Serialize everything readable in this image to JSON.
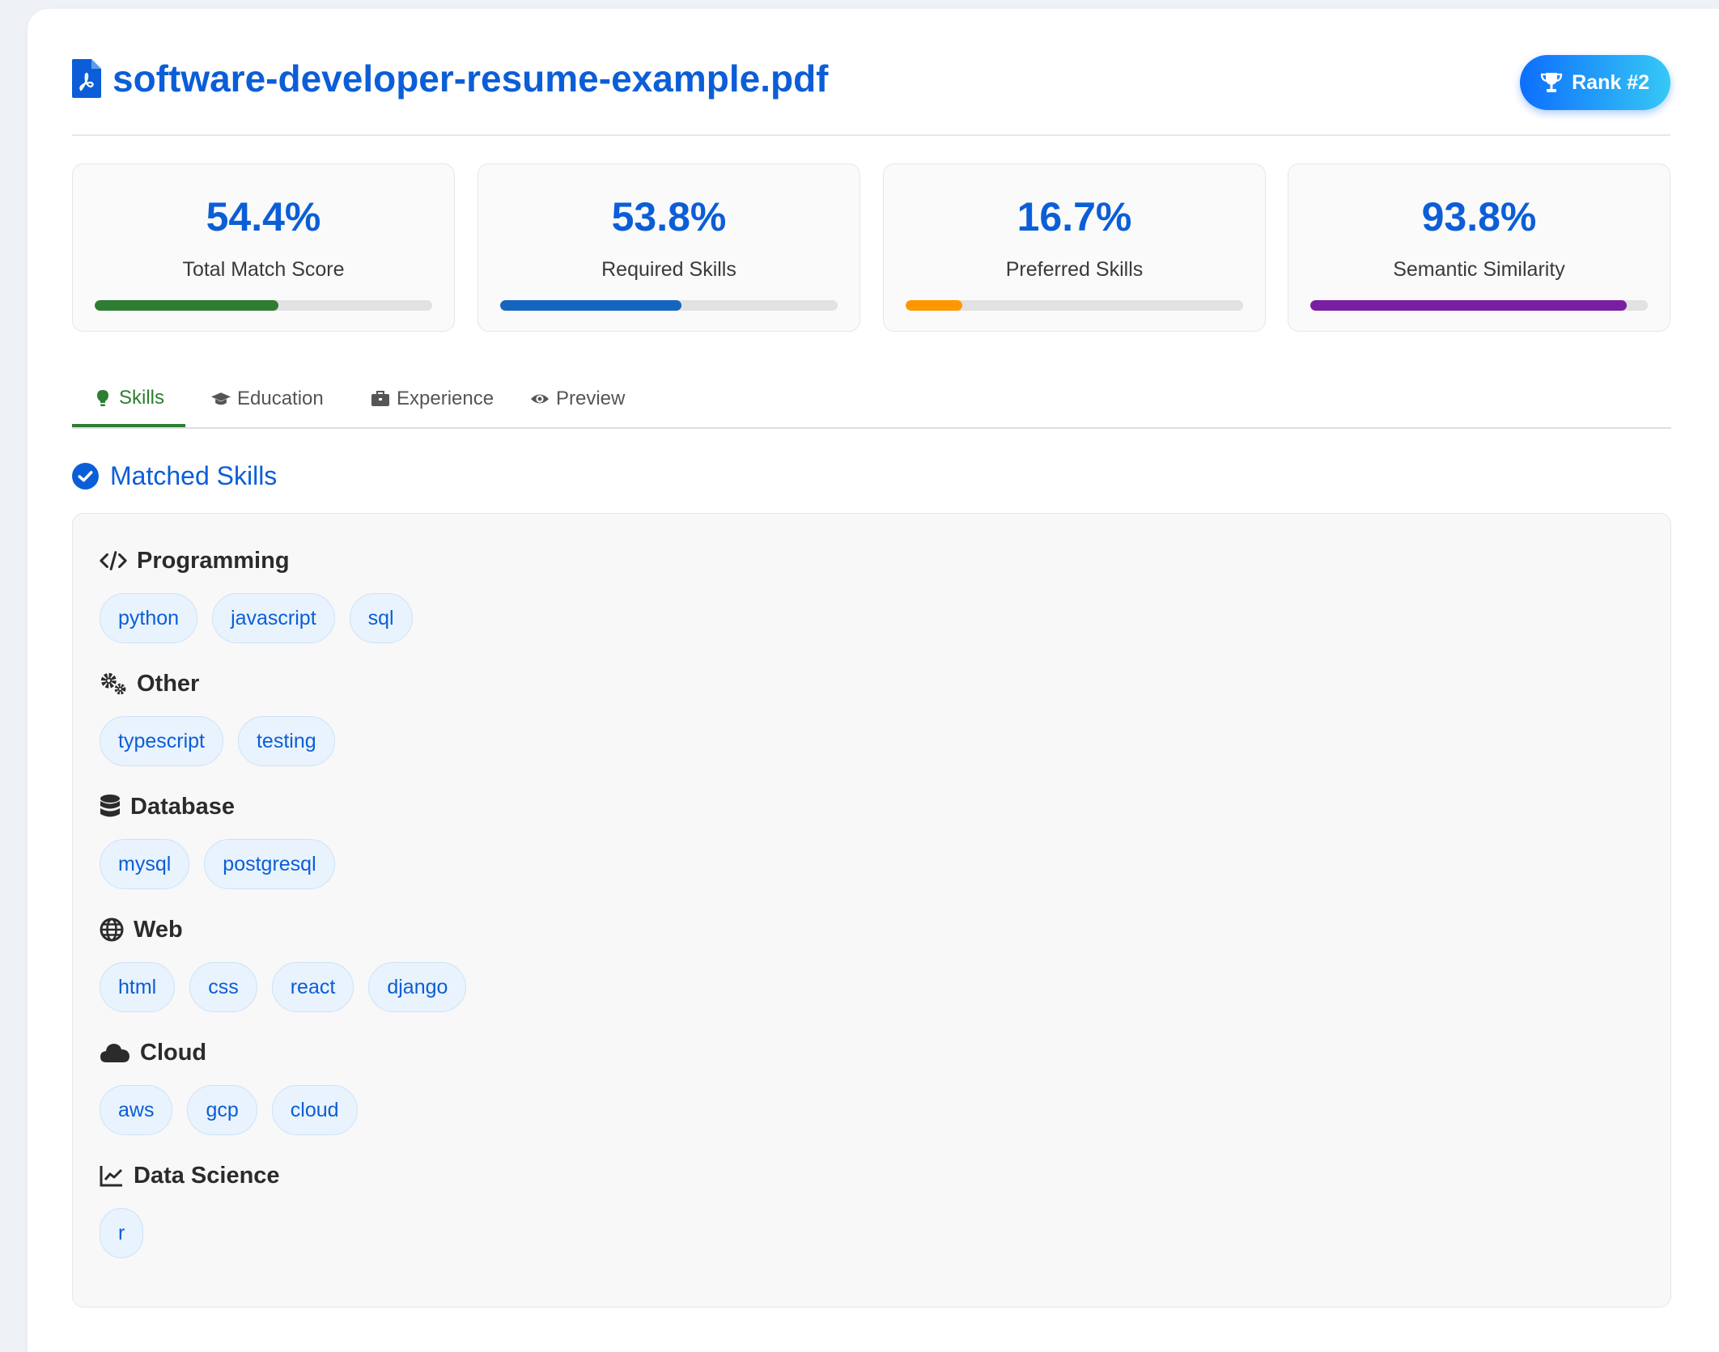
{
  "header": {
    "file_name": "software-developer-resume-example.pdf",
    "rank_label": "Rank #2"
  },
  "stats": [
    {
      "value": "54.4%",
      "label": "Total Match Score",
      "fill": 0.544,
      "color": "#2e7d32"
    },
    {
      "value": "53.8%",
      "label": "Required Skills",
      "fill": 0.538,
      "color": "#1565c0"
    },
    {
      "value": "16.7%",
      "label": "Preferred Skills",
      "fill": 0.167,
      "color": "#ff9800"
    },
    {
      "value": "93.8%",
      "label": "Semantic Similarity",
      "fill": 0.938,
      "color": "#7b1fa2"
    }
  ],
  "tabs": [
    {
      "label": "Skills",
      "icon": "lightbulb-icon",
      "active": true
    },
    {
      "label": "Education",
      "icon": "graduation-cap-icon",
      "active": false
    },
    {
      "label": "Experience",
      "icon": "briefcase-icon",
      "active": false
    },
    {
      "label": "Preview",
      "icon": "eye-icon",
      "active": false
    }
  ],
  "matched": {
    "title": "Matched Skills",
    "groups": [
      {
        "name": "Programming",
        "icon": "code-icon",
        "skills": [
          "python",
          "javascript",
          "sql"
        ]
      },
      {
        "name": "Other",
        "icon": "gears-icon",
        "skills": [
          "typescript",
          "testing"
        ]
      },
      {
        "name": "Database",
        "icon": "database-icon",
        "skills": [
          "mysql",
          "postgresql"
        ]
      },
      {
        "name": "Web",
        "icon": "globe-icon",
        "skills": [
          "html",
          "css",
          "react",
          "django"
        ]
      },
      {
        "name": "Cloud",
        "icon": "cloud-icon",
        "skills": [
          "aws",
          "gcp",
          "cloud"
        ]
      },
      {
        "name": "Data Science",
        "icon": "line-chart-icon",
        "skills": [
          "r"
        ]
      }
    ]
  }
}
